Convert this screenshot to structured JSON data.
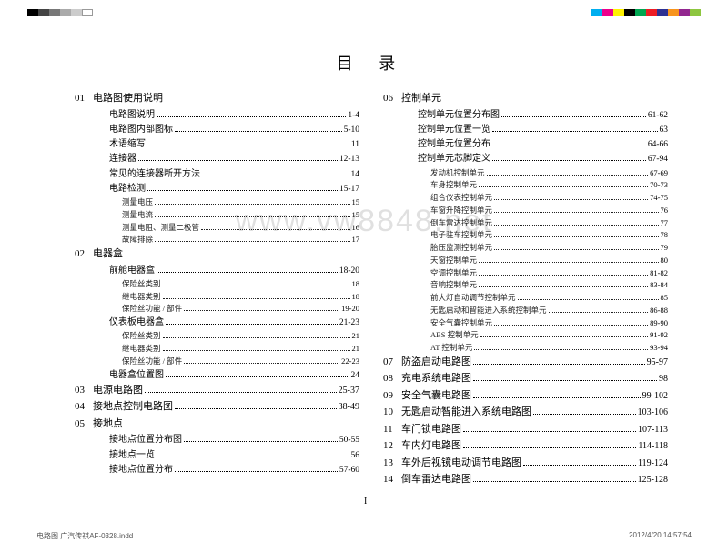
{
  "title": "目 录",
  "watermark": "www.vw8848.net",
  "footer_left": "电路图 广汽传祺AF-0328.indd   I",
  "footer_right": "2012/4/20   14:57:54",
  "page_indicator": "I",
  "bars_left": [
    "#000000",
    "#444444",
    "#777777",
    "#aaaaaa",
    "#cccccc",
    "#ffffff"
  ],
  "bars_right": [
    "#00aeef",
    "#ec008c",
    "#fff200",
    "#000000",
    "#00a651",
    "#ed1c24",
    "#2e3192",
    "#f7941d",
    "#92278f",
    "#8dc63f"
  ],
  "left_col": [
    {
      "type": "sec-nodots",
      "num": "01",
      "label": "电路图使用说明"
    },
    {
      "type": "sub1",
      "label": "电路图说明",
      "pg": "1-4"
    },
    {
      "type": "sub1",
      "label": "电路图内部图标",
      "pg": "5-10"
    },
    {
      "type": "sub1",
      "label": "术语缩写",
      "pg": "11"
    },
    {
      "type": "sub1",
      "label": "连接器",
      "pg": "12-13"
    },
    {
      "type": "sub1",
      "label": "常见的连接器断开方法",
      "pg": "14"
    },
    {
      "type": "sub1",
      "label": "电路检测",
      "pg": "15-17"
    },
    {
      "type": "sub2",
      "label": "测量电压",
      "pg": "15"
    },
    {
      "type": "sub2",
      "label": "测量电流",
      "pg": "15"
    },
    {
      "type": "sub2",
      "label": "测量电阻、测量二极管",
      "pg": "16"
    },
    {
      "type": "sub2",
      "label": "故障排除",
      "pg": "17"
    },
    {
      "type": "sec-nodots",
      "num": "02",
      "label": "电器盒"
    },
    {
      "type": "sub1",
      "label": "前舱电器盒",
      "pg": "18-20"
    },
    {
      "type": "sub2",
      "label": "保险丝类别",
      "pg": "18"
    },
    {
      "type": "sub2",
      "label": "继电器类别",
      "pg": "18"
    },
    {
      "type": "sub2",
      "label": "保险丝功能 / 部件",
      "pg": "19-20"
    },
    {
      "type": "sub1",
      "label": "仪表板电器盒",
      "pg": "21-23"
    },
    {
      "type": "sub2",
      "label": "保险丝类别",
      "pg": "21"
    },
    {
      "type": "sub2",
      "label": "继电器类别",
      "pg": "21"
    },
    {
      "type": "sub2",
      "label": "保险丝功能 / 部件",
      "pg": "22-23"
    },
    {
      "type": "sub1",
      "label": "电器盒位置图",
      "pg": "24"
    },
    {
      "type": "sec",
      "num": "03",
      "label": "电源电路图",
      "pg": "25-37"
    },
    {
      "type": "sec",
      "num": "04",
      "label": "接地点控制电路图",
      "pg": "38-49"
    },
    {
      "type": "sec-nodots",
      "num": "05",
      "label": "接地点"
    },
    {
      "type": "sub1",
      "label": "接地点位置分布图",
      "pg": "50-55"
    },
    {
      "type": "sub1",
      "label": "接地点一览",
      "pg": "56"
    },
    {
      "type": "sub1",
      "label": "接地点位置分布",
      "pg": "57-60"
    }
  ],
  "right_col": [
    {
      "type": "sec-nodots",
      "num": "06",
      "label": "控制单元"
    },
    {
      "type": "sub1",
      "label": "控制单元位置分布图",
      "pg": "61-62"
    },
    {
      "type": "sub1",
      "label": "控制单元位置一览",
      "pg": "63"
    },
    {
      "type": "sub1",
      "label": "控制单元位置分布",
      "pg": "64-66"
    },
    {
      "type": "sub1",
      "label": "控制单元芯脚定义",
      "pg": "67-94"
    },
    {
      "type": "sub2",
      "label": "发动机控制单元",
      "pg": "67-69"
    },
    {
      "type": "sub2",
      "label": "车身控制单元",
      "pg": "70-73"
    },
    {
      "type": "sub2",
      "label": "组合仪表控制单元",
      "pg": "74-75"
    },
    {
      "type": "sub2",
      "label": "车窗升降控制单元",
      "pg": "76"
    },
    {
      "type": "sub2",
      "label": "倒车雷达控制单元",
      "pg": "77"
    },
    {
      "type": "sub2",
      "label": "电子驻车控制单元",
      "pg": "78"
    },
    {
      "type": "sub2",
      "label": "胎压监测控制单元",
      "pg": "79"
    },
    {
      "type": "sub2",
      "label": "天窗控制单元",
      "pg": "80"
    },
    {
      "type": "sub2",
      "label": "空调控制单元",
      "pg": "81-82"
    },
    {
      "type": "sub2",
      "label": "音响控制单元",
      "pg": "83-84"
    },
    {
      "type": "sub2",
      "label": "前大灯自动调节控制单元",
      "pg": "85"
    },
    {
      "type": "sub2",
      "label": "无匙启动和智能进入系统控制单元",
      "pg": "86-88"
    },
    {
      "type": "sub2",
      "label": "安全气囊控制单元",
      "pg": "89-90"
    },
    {
      "type": "sub2",
      "label": "ABS 控制单元",
      "pg": "91-92"
    },
    {
      "type": "sub2",
      "label": "AT 控制单元",
      "pg": "93-94"
    },
    {
      "type": "sec",
      "num": "07",
      "label": "防盗启动电路图",
      "pg": "95-97"
    },
    {
      "type": "sec",
      "num": "08",
      "label": "充电系统电路图",
      "pg": "98"
    },
    {
      "type": "sec",
      "num": "09",
      "label": "安全气囊电路图",
      "pg": "99-102"
    },
    {
      "type": "sec",
      "num": "10",
      "label": "无匙启动智能进入系统电路图",
      "pg": "103-106"
    },
    {
      "type": "sec",
      "num": "11",
      "label": "车门锁电路图",
      "pg": "107-113"
    },
    {
      "type": "sec",
      "num": "12",
      "label": "车内灯电路图",
      "pg": "114-118"
    },
    {
      "type": "sec",
      "num": "13",
      "label": "车外后视镜电动调节电路图",
      "pg": "119-124"
    },
    {
      "type": "sec",
      "num": "14",
      "label": "倒车雷达电路图",
      "pg": "125-128"
    }
  ]
}
